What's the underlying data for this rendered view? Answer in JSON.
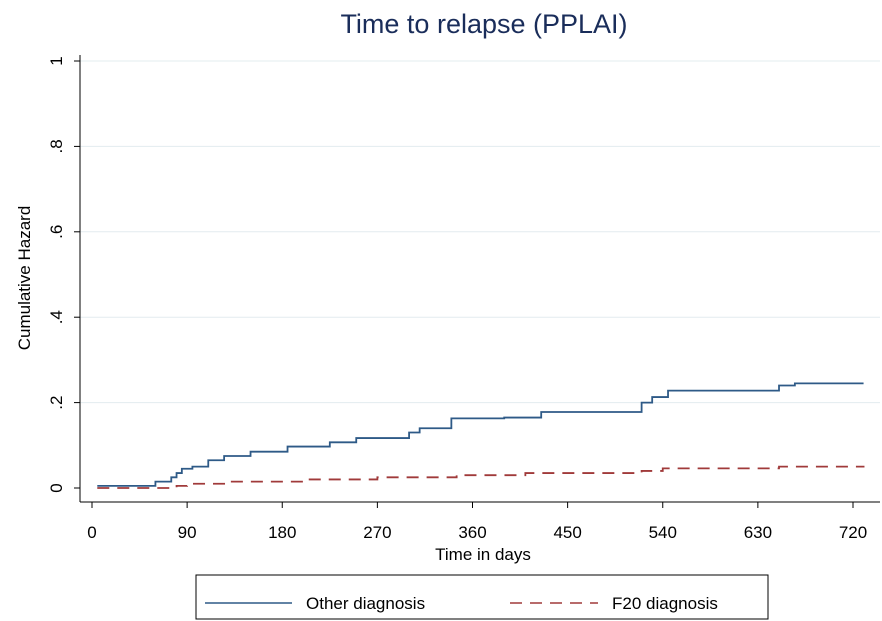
{
  "chart_data": {
    "type": "line",
    "title": "Time to relapse (PPLAI)",
    "xlabel": "Time in days",
    "ylabel": "Cumulative Hazard",
    "xlim": [
      0,
      730
    ],
    "ylim": [
      0,
      1
    ],
    "x_ticks": [
      0,
      90,
      180,
      270,
      360,
      450,
      540,
      630,
      720
    ],
    "y_ticks": [
      0,
      0.2,
      0.4,
      0.6,
      0.8,
      1
    ],
    "y_tick_labels": [
      "0",
      ".2",
      ".4",
      ".6",
      ".8",
      "1"
    ],
    "grid": "horizontal",
    "legend_position": "bottom",
    "step": true,
    "series": [
      {
        "name": "Other diagnosis",
        "color": "#2e5a87",
        "dash": "solid",
        "x": [
          5,
          60,
          75,
          80,
          85,
          95,
          110,
          125,
          150,
          185,
          225,
          250,
          300,
          310,
          340,
          390,
          425,
          520,
          530,
          545,
          650,
          665,
          730
        ],
        "y": [
          0.005,
          0.015,
          0.025,
          0.035,
          0.045,
          0.05,
          0.065,
          0.075,
          0.085,
          0.097,
          0.107,
          0.117,
          0.13,
          0.14,
          0.163,
          0.165,
          0.178,
          0.2,
          0.213,
          0.228,
          0.24,
          0.245,
          0.245
        ]
      },
      {
        "name": "F20 diagnosis",
        "color": "#a03a3a",
        "dash": "dashed",
        "x": [
          5,
          80,
          90,
          130,
          200,
          270,
          345,
          410,
          520,
          540,
          650,
          730
        ],
        "y": [
          0.0,
          0.005,
          0.01,
          0.015,
          0.02,
          0.025,
          0.03,
          0.035,
          0.04,
          0.046,
          0.05,
          0.052
        ]
      }
    ]
  }
}
